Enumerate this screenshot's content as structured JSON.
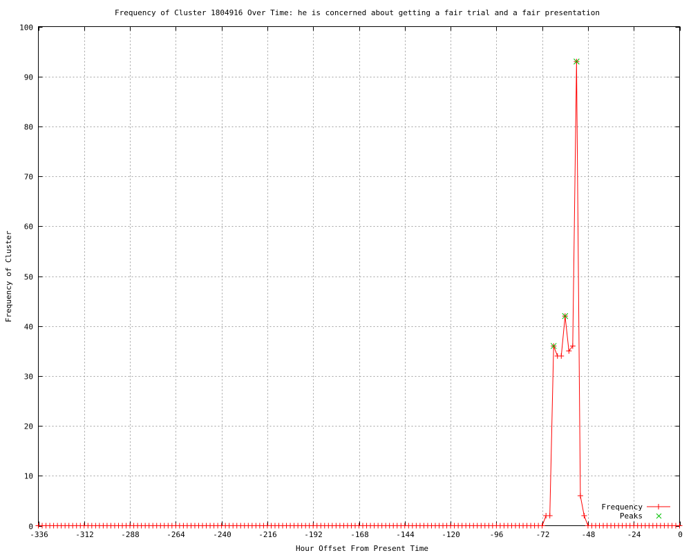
{
  "chart_data": {
    "type": "line",
    "title": "Frequency of Cluster 1804916 Over Time: he is concerned about getting a fair trial and a fair presentation",
    "xlabel": "Hour Offset From Present Time",
    "ylabel": "Frequency of Cluster",
    "xlim": [
      -336,
      0
    ],
    "ylim": [
      0,
      100
    ],
    "grid": true,
    "legend_position": "bottom-right",
    "x_ticks": [
      "-336",
      "-312",
      "-288",
      "-264",
      "-240",
      "-216",
      "-192",
      "-168",
      "-144",
      "-120",
      "-96",
      "-72",
      "-48",
      "-24",
      "0"
    ],
    "y_ticks": [
      "0",
      "10",
      "20",
      "30",
      "40",
      "50",
      "60",
      "70",
      "80",
      "90",
      "100"
    ],
    "x": {
      "start": -336,
      "end": 0,
      "step": 2
    },
    "series": [
      {
        "name": "Frequency",
        "color": "#ff0000",
        "values": [
          0,
          0,
          0,
          0,
          0,
          0,
          0,
          0,
          0,
          0,
          0,
          0,
          0,
          0,
          0,
          0,
          0,
          0,
          0,
          0,
          0,
          0,
          0,
          0,
          0,
          0,
          0,
          0,
          0,
          0,
          0,
          0,
          0,
          0,
          0,
          0,
          0,
          0,
          0,
          0,
          0,
          0,
          0,
          0,
          0,
          0,
          0,
          0,
          0,
          0,
          0,
          0,
          0,
          0,
          0,
          0,
          0,
          0,
          0,
          0,
          0,
          0,
          0,
          0,
          0,
          0,
          0,
          0,
          0,
          0,
          0,
          0,
          0,
          0,
          0,
          0,
          0,
          0,
          0,
          0,
          0,
          0,
          0,
          0,
          0,
          0,
          0,
          0,
          0,
          0,
          0,
          0,
          0,
          0,
          0,
          0,
          0,
          0,
          0,
          0,
          0,
          0,
          0,
          0,
          0,
          0,
          0,
          0,
          0,
          0,
          0,
          0,
          0,
          0,
          0,
          0,
          0,
          0,
          0,
          0,
          0,
          0,
          0,
          0,
          0,
          0,
          0,
          0,
          0,
          0,
          0,
          0,
          0,
          2,
          2,
          36,
          34,
          34,
          42,
          35,
          36,
          93,
          6,
          2,
          0,
          0,
          0,
          0,
          0,
          0,
          0,
          0,
          0,
          0,
          0,
          0,
          0,
          0,
          0,
          0,
          0,
          0,
          0,
          0,
          0,
          0,
          0,
          0,
          0
        ]
      },
      {
        "name": "Peaks",
        "color": "#00c000",
        "points": [
          [
            -66,
            36
          ],
          [
            -60,
            42
          ],
          [
            -54,
            93
          ]
        ]
      }
    ]
  }
}
